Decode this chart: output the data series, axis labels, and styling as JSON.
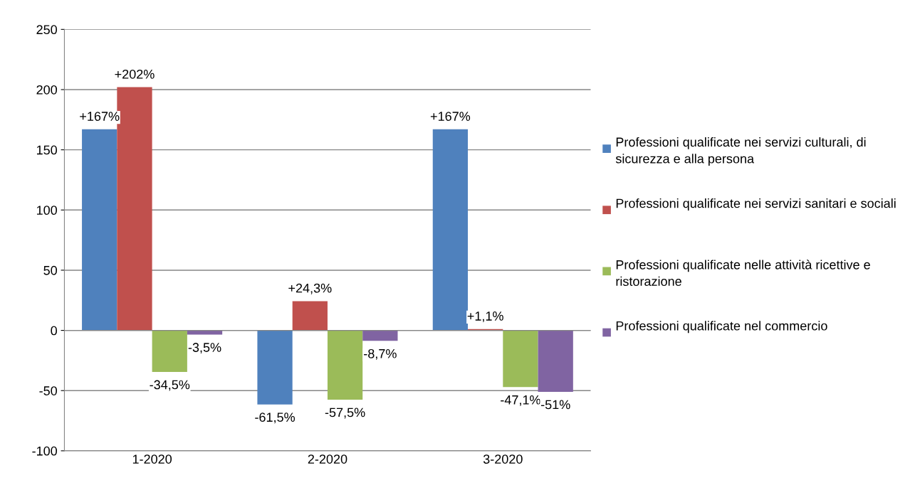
{
  "chart_data": {
    "type": "bar",
    "categories": [
      "1-2020",
      "2-2020",
      "3-2020"
    ],
    "series": [
      {
        "name": "Professioni qualificate nei servizi culturali, di sicurezza e alla persona",
        "color": "#4f81bd",
        "values": [
          167,
          -61.5,
          167
        ],
        "value_labels": [
          "+167%",
          "-61,5%",
          "+167%"
        ]
      },
      {
        "name": "Professioni qualificate nei servizi sanitari e sociali",
        "color": "#c0504d",
        "values": [
          202,
          24.3,
          1.1
        ],
        "value_labels": [
          "+202%",
          "+24,3%",
          "+1,1%"
        ]
      },
      {
        "name": "Professioni qualificate nelle attività ricettive e ristorazione",
        "color": "#9bbb59",
        "values": [
          -34.5,
          -57.5,
          -47.1
        ],
        "value_labels": [
          "-34,5%",
          "-57,5%",
          "-47,1%"
        ]
      },
      {
        "name": "Professioni qualificate nel commercio",
        "color": "#8064a2",
        "values": [
          -3.5,
          -8.7,
          -51
        ],
        "value_labels": [
          "-3,5%",
          "-8,7%",
          "-51%"
        ]
      }
    ],
    "ylim": [
      -100,
      250
    ],
    "yticks": [
      -100,
      -50,
      0,
      50,
      100,
      150,
      200,
      250
    ],
    "grid": "y",
    "legend": "right"
  }
}
